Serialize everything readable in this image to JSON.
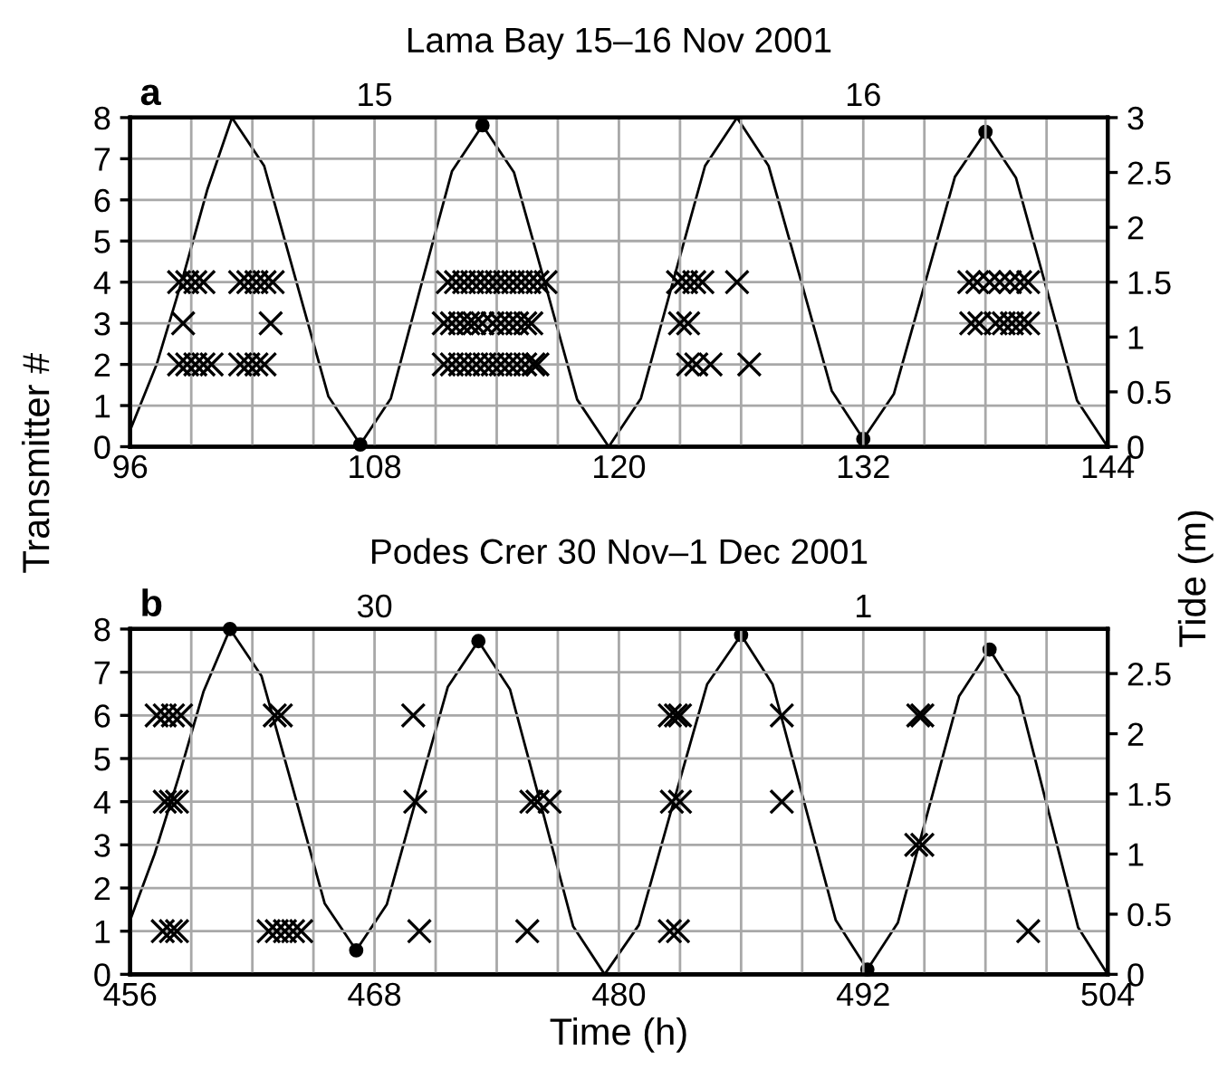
{
  "chart_data": [
    {
      "type": "scatter",
      "title": "Lama Bay 15–16 Nov 2001",
      "ylabel": "Transmitter #",
      "y2label": "Tide (m)",
      "annotations": [
        "a"
      ],
      "xlim": [
        96,
        144
      ],
      "xticks": [
        96,
        {
          "value": 99,
          "label": null
        },
        {
          "value": 102,
          "label": null
        },
        {
          "value": 105,
          "label": null
        },
        108,
        {
          "value": 111,
          "label": null
        },
        {
          "value": 114,
          "label": null
        },
        {
          "value": 117,
          "label": null
        },
        120,
        {
          "value": 123,
          "label": null
        },
        {
          "value": 126,
          "label": null
        },
        {
          "value": 129,
          "label": null
        },
        132,
        {
          "value": 135,
          "label": null
        },
        {
          "value": 138,
          "label": null
        },
        {
          "value": 141,
          "label": null
        },
        144
      ],
      "x2lim": [
        "2001-11-15T00:00",
        "2001-11-17T00:00"
      ],
      "x2ticks": [
        {
          "value": "2001-11-15T12:00",
          "label": "15"
        },
        {
          "value": "2001-11-16T12:00",
          "label": "16"
        }
      ],
      "ylim": [
        0,
        8
      ],
      "yticks": [
        0,
        1,
        2,
        3,
        4,
        5,
        6,
        7,
        8
      ],
      "y2lim": [
        0,
        3
      ],
      "y2ticks": [
        0,
        0.5,
        1,
        1.5,
        2,
        2.5,
        3
      ],
      "grid": true,
      "series": [
        {
          "type": "line",
          "axis": "y2",
          "color": "#000000",
          "marker": "none",
          "line_style": "solid",
          "x": [
            96,
            97.3,
            98.6,
            99.8,
            101,
            102.58,
            104.15,
            105.73,
            107.3,
            108.8,
            110.3,
            111.8,
            113.3,
            114.85,
            116.4,
            117.95,
            119.5,
            121.08,
            122.65,
            124.23,
            125.8,
            127.35,
            128.9,
            130.45,
            132,
            133.5,
            135,
            136.5,
            138,
            139.5,
            141,
            142.5,
            144
          ],
          "values": [
            0.15,
            0.75,
            1.55,
            2.35,
            3.0,
            2.56,
            1.51,
            0.46,
            0.02,
            0.44,
            1.48,
            2.51,
            2.93,
            2.5,
            1.47,
            0.43,
            0.0,
            0.44,
            1.5,
            2.56,
            3.0,
            2.56,
            1.54,
            0.51,
            0.07,
            0.48,
            1.47,
            2.46,
            2.87,
            2.45,
            1.44,
            0.42,
            0.0
          ]
        },
        {
          "type": "scatter",
          "axis": "y2",
          "color": "#000000",
          "marker": "circle",
          "x": [
            107.3,
            113.3,
            132,
            138
          ],
          "values": [
            0.02,
            2.93,
            0.07,
            2.87
          ]
        },
        {
          "color": "#000000",
          "marker": "cross",
          "x": [
            98.4,
            98.8,
            99.2,
            99.6,
            101.4,
            101.8,
            102.2,
            102.6,
            103.0,
            98.6,
            102.9,
            98.4,
            98.8,
            99.2,
            99.6,
            100.0,
            101.4,
            101.8,
            102.2,
            102.6,
            111.6,
            112.0,
            112.4,
            112.8,
            113.2,
            113.6,
            114.0,
            114.4,
            114.8,
            115.2,
            115.6,
            116.0,
            116.4,
            111.4,
            111.8,
            112.2,
            112.6,
            112.9,
            113.3,
            113.8,
            114.2,
            114.6,
            115.0,
            115.4,
            115.7,
            111.4,
            111.8,
            112.2,
            112.6,
            113.0,
            113.4,
            113.8,
            114.2,
            114.6,
            115.0,
            115.4,
            115.8,
            116.0,
            122.9,
            123.3,
            123.7,
            124.1,
            125.8,
            123.0,
            123.4,
            123.4,
            123.8,
            124.5,
            126.4,
            137.2,
            137.6,
            138.2,
            138.7,
            139.2,
            139.7,
            140.1,
            137.3,
            137.7,
            138.5,
            138.9,
            139.3,
            139.7,
            140.1
          ],
          "values": [
            4,
            4,
            4,
            4,
            4,
            4,
            4,
            4,
            4,
            3,
            3,
            2,
            2,
            2,
            2,
            2,
            2,
            2,
            2,
            2,
            4,
            4,
            4,
            4,
            4,
            4,
            4,
            4,
            4,
            4,
            4,
            4,
            4,
            3,
            3,
            3,
            3,
            3,
            3,
            3,
            3,
            3,
            3,
            3,
            3,
            2,
            2,
            2,
            2,
            2,
            2,
            2,
            2,
            2,
            2,
            2,
            2,
            2,
            4,
            4,
            4,
            4,
            4,
            3,
            3,
            2,
            2,
            2,
            2,
            4,
            4,
            4,
            4,
            4,
            4,
            4,
            3,
            3,
            3,
            3,
            3,
            3,
            3
          ]
        }
      ]
    },
    {
      "type": "scatter",
      "title": "Podes Crer 30 Nov–1 Dec 2001",
      "xlabel": "Time (h)",
      "annotations": [
        "b"
      ],
      "xlim": [
        456,
        504
      ],
      "xticks": [
        456,
        {
          "value": 459,
          "label": null
        },
        {
          "value": 462,
          "label": null
        },
        {
          "value": 465,
          "label": null
        },
        468,
        {
          "value": 471,
          "label": null
        },
        {
          "value": 474,
          "label": null
        },
        {
          "value": 477,
          "label": null
        },
        480,
        {
          "value": 483,
          "label": null
        },
        {
          "value": 486,
          "label": null
        },
        {
          "value": 489,
          "label": null
        },
        492,
        {
          "value": 495,
          "label": null
        },
        {
          "value": 498,
          "label": null
        },
        {
          "value": 501,
          "label": null
        },
        504
      ],
      "x2lim": [
        "2001-11-30T00:00",
        "2001-12-02T00:00"
      ],
      "x2ticks": [
        {
          "value": "2001-11-30T12:00",
          "label": "30"
        },
        {
          "value": "2001-12-01T12:00",
          "label": "1"
        }
      ],
      "ylim": [
        0,
        8
      ],
      "yticks": [
        0,
        1,
        2,
        3,
        4,
        5,
        6,
        7,
        8
      ],
      "y2lim": [
        0,
        2.87
      ],
      "y2ticks": [
        0,
        0.5,
        1,
        1.5,
        2,
        2.5
      ],
      "grid": true,
      "series": [
        {
          "type": "line",
          "axis": "y2",
          "color": "#000000",
          "marker": "none",
          "line_style": "solid",
          "x": [
            456,
            457.2,
            458.4,
            459.6,
            460.9,
            462.45,
            464.0,
            465.55,
            467.1,
            468.6,
            470.1,
            471.6,
            473.1,
            474.65,
            476.2,
            477.75,
            479.3,
            480.98,
            482.65,
            484.33,
            486,
            487.55,
            489.1,
            490.65,
            492.2,
            493.7,
            495.2,
            496.7,
            498.2,
            499.65,
            501.1,
            502.55,
            504
          ],
          "values": [
            0.45,
            1.0,
            1.65,
            2.35,
            2.87,
            2.48,
            1.54,
            0.59,
            0.2,
            0.58,
            1.49,
            2.39,
            2.77,
            2.37,
            1.39,
            0.4,
            0.0,
            0.41,
            1.41,
            2.41,
            2.82,
            2.41,
            1.43,
            0.45,
            0.04,
            0.43,
            1.37,
            2.31,
            2.7,
            2.31,
            1.35,
            0.39,
            0.0
          ]
        },
        {
          "type": "scatter",
          "axis": "y2",
          "color": "#000000",
          "marker": "circle",
          "x": [
            460.9,
            467.1,
            473.1,
            486,
            492.2,
            498.2
          ],
          "values": [
            2.87,
            0.2,
            2.77,
            2.82,
            0.04,
            2.7
          ]
        },
        {
          "color": "#000000",
          "marker": "cross",
          "x": [
            457.3,
            457.7,
            458.1,
            458.5,
            463.1,
            463.4,
            469.9,
            482.5,
            482.8,
            483.0,
            488.0,
            494.7,
            494.9,
            457.7,
            458.0,
            458.3,
            470.0,
            475.7,
            476.0,
            476.6,
            482.6,
            483.0,
            488.0,
            494.6,
            494.9,
            457.6,
            458.0,
            458.3,
            462.8,
            463.2,
            463.6,
            464.0,
            464.4,
            470.2,
            475.5,
            482.5,
            482.9,
            500.1
          ],
          "values": [
            6,
            6,
            6,
            6,
            6,
            6,
            6,
            6,
            6,
            6,
            6,
            6,
            6,
            4,
            4,
            4,
            4,
            4,
            4,
            4,
            4,
            4,
            4,
            3,
            3,
            1,
            1,
            1,
            1,
            1,
            1,
            1,
            1,
            1,
            1,
            1,
            1,
            1
          ]
        }
      ]
    }
  ]
}
